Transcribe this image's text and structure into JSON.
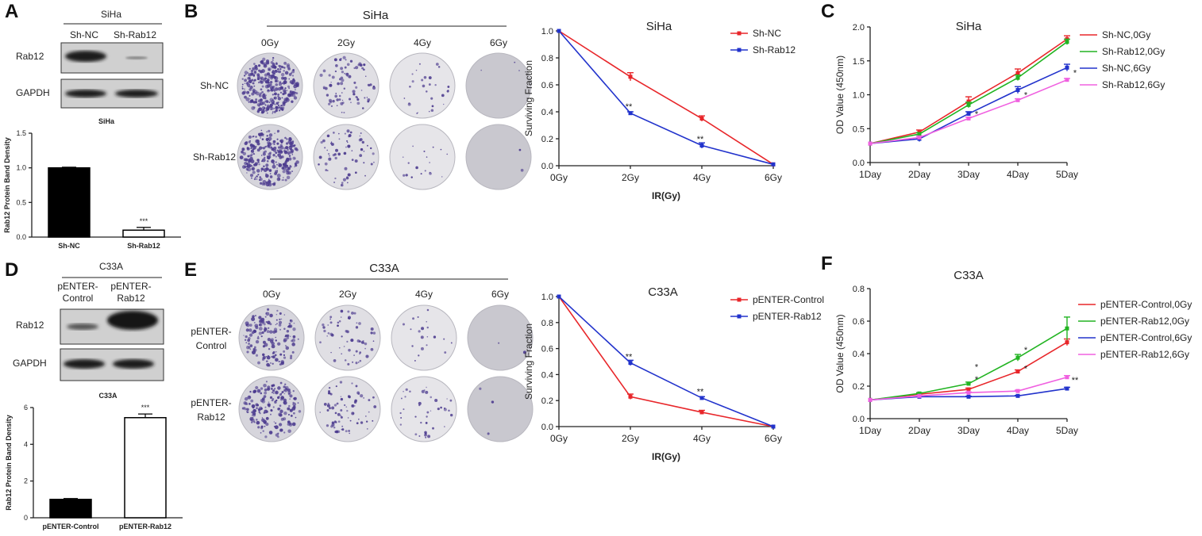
{
  "panels": {
    "A": {
      "letter": "A",
      "cell": "SiHa",
      "lanes": [
        "Sh-NC",
        "Sh-Rab12"
      ],
      "rows": [
        "Rab12",
        "GAPDH"
      ]
    },
    "B": {
      "letter": "B",
      "cell": "SiHa",
      "doses": [
        "0Gy",
        "2Gy",
        "4Gy",
        "6Gy"
      ],
      "rows": [
        "Sh-NC",
        "Sh-Rab12"
      ]
    },
    "C": {
      "letter": "C"
    },
    "D": {
      "letter": "D",
      "cell": "C33A",
      "lanes": [
        "pENTER-\nControl",
        "pENTER-\nRab12"
      ],
      "rows": [
        "Rab12",
        "GAPDH"
      ]
    },
    "E": {
      "letter": "E",
      "cell": "C33A",
      "doses": [
        "0Gy",
        "2Gy",
        "4Gy",
        "6Gy"
      ],
      "rows": [
        "pENTER-\nControl",
        "pENTER-\nRab12"
      ]
    },
    "F": {
      "letter": "F"
    }
  },
  "colors": {
    "red": "#e8262a",
    "blue": "#2233cc",
    "green": "#22b422",
    "pink": "#f060e0",
    "black": "#000000"
  },
  "chart_data": [
    {
      "id": "A-bar",
      "type": "bar",
      "title": "SiHa",
      "ylabel": "Rab12 Protein Band Density",
      "categories": [
        "Sh-NC",
        "Sh-Rab12"
      ],
      "values": [
        1.0,
        0.1
      ],
      "errors": [
        0.01,
        0.04
      ],
      "fills": [
        "#000000",
        "#ffffff"
      ],
      "ylim": [
        0,
        1.5
      ],
      "yticks": [
        0.0,
        0.5,
        1.0,
        1.5
      ],
      "yticklabels": [
        "0.0",
        "0.5",
        "1.0",
        "1.5"
      ],
      "annotations": [
        {
          "index": 1,
          "text": "***"
        }
      ]
    },
    {
      "id": "D-bar",
      "type": "bar",
      "title": "C33A",
      "ylabel": "Rab12 Protein Band Density",
      "categories": [
        "pENTER-Control",
        "pENTER-Rab12"
      ],
      "values": [
        1.0,
        5.45
      ],
      "errors": [
        0.05,
        0.2
      ],
      "fills": [
        "#000000",
        "#ffffff"
      ],
      "ylim": [
        0,
        6
      ],
      "yticks": [
        0,
        2,
        4,
        6
      ],
      "yticklabels": [
        "0",
        "2",
        "4",
        "6"
      ],
      "annotations": [
        {
          "index": 1,
          "text": "***"
        }
      ]
    },
    {
      "id": "B-line",
      "type": "line",
      "title": "SiHa",
      "xlabel": "IR(Gy)",
      "ylabel": "Surviving Fraction",
      "categories": [
        "0Gy",
        "2Gy",
        "4Gy",
        "6Gy"
      ],
      "ylim": [
        0,
        1.0
      ],
      "yticks": [
        0,
        0.2,
        0.4,
        0.6,
        0.8,
        1.0
      ],
      "yticklabels": [
        "0.0",
        "0.2",
        "0.4",
        "0.6",
        "0.8",
        "1.0"
      ],
      "series": [
        {
          "name": "Sh-NC",
          "color": "#e8262a",
          "values": [
            1.0,
            0.66,
            0.35,
            0.01
          ],
          "errors": [
            0,
            0.03,
            0.02,
            0
          ]
        },
        {
          "name": "Sh-Rab12",
          "color": "#2233cc",
          "values": [
            1.0,
            0.39,
            0.15,
            0.01
          ],
          "errors": [
            0,
            0.01,
            0.02,
            0
          ]
        }
      ],
      "annotations": [
        {
          "index": 1,
          "text": "**"
        },
        {
          "index": 2,
          "text": "**"
        }
      ]
    },
    {
      "id": "E-line",
      "type": "line",
      "title": "C33A",
      "xlabel": "IR(Gy)",
      "ylabel": "Surviving Fraction",
      "categories": [
        "0Gy",
        "2Gy",
        "4Gy",
        "6Gy"
      ],
      "ylim": [
        0,
        1.0
      ],
      "yticks": [
        0,
        0.2,
        0.4,
        0.6,
        0.8,
        1.0
      ],
      "yticklabels": [
        "0.0",
        "0.2",
        "0.4",
        "0.6",
        "0.8",
        "1.0"
      ],
      "series": [
        {
          "name": "pENTER-Control",
          "color": "#e8262a",
          "values": [
            1.0,
            0.23,
            0.11,
            0.0
          ],
          "errors": [
            0,
            0.02,
            0.015,
            0
          ]
        },
        {
          "name": "pENTER-Rab12",
          "color": "#2233cc",
          "values": [
            1.0,
            0.49,
            0.22,
            0.0
          ],
          "errors": [
            0,
            0.02,
            0.01,
            0
          ]
        }
      ],
      "annotations": [
        {
          "index": 1,
          "text": "**"
        },
        {
          "index": 2,
          "text": "**"
        }
      ]
    },
    {
      "id": "C-line",
      "type": "line",
      "title": "SiHa",
      "ylabel": "OD Value (450nm)",
      "categories": [
        "1Day",
        "2Day",
        "3Day",
        "4Day",
        "5Day"
      ],
      "ylim": [
        0,
        2.0
      ],
      "yticks": [
        0,
        0.5,
        1.0,
        1.5,
        2.0
      ],
      "yticklabels": [
        "0.0",
        "0.5",
        "1.0",
        "1.5",
        "2.0"
      ],
      "series": [
        {
          "name": "Sh-NC,0Gy",
          "color": "#e8262a",
          "values": [
            0.28,
            0.45,
            0.9,
            1.32,
            1.82
          ],
          "errors": [
            0,
            0.03,
            0.07,
            0.06,
            0.05
          ]
        },
        {
          "name": "Sh-Rab12,0Gy",
          "color": "#22b422",
          "values": [
            0.28,
            0.42,
            0.85,
            1.25,
            1.78
          ],
          "errors": [
            0,
            0.02,
            0.04,
            0.04,
            0.04
          ]
        },
        {
          "name": "Sh-NC,6Gy",
          "color": "#2233cc",
          "values": [
            0.28,
            0.35,
            0.72,
            1.07,
            1.4
          ],
          "errors": [
            0,
            0.04,
            0.03,
            0.05,
            0.05
          ]
        },
        {
          "name": "Sh-Rab12,6Gy",
          "color": "#f060e0",
          "values": [
            0.28,
            0.37,
            0.65,
            0.92,
            1.22
          ],
          "errors": [
            0,
            0.02,
            0.02,
            0.02,
            0.02
          ]
        }
      ],
      "annotations": [
        {
          "index": 2,
          "y": 0.72,
          "text": "*"
        },
        {
          "index": 3,
          "y": 1.0,
          "text": "*"
        },
        {
          "index": 4,
          "y": 1.33,
          "text": "*"
        }
      ]
    },
    {
      "id": "F-line",
      "type": "line",
      "title": "C33A",
      "ylabel": "OD Value (450nm)",
      "categories": [
        "1Day",
        "2Day",
        "3Day",
        "4Day",
        "5Day"
      ],
      "ylim": [
        0,
        0.8
      ],
      "yticks": [
        0,
        0.2,
        0.4,
        0.6,
        0.8
      ],
      "yticklabels": [
        "0.0",
        "0.2",
        "0.4",
        "0.6",
        "0.8"
      ],
      "series": [
        {
          "name": "pENTER-Control,0Gy",
          "color": "#e8262a",
          "values": [
            0.115,
            0.15,
            0.18,
            0.29,
            0.47
          ],
          "errors": [
            0,
            0.005,
            0.008,
            0.01,
            0.02
          ]
        },
        {
          "name": "pENTER-Rab12,0Gy",
          "color": "#22b422",
          "values": [
            0.115,
            0.155,
            0.215,
            0.375,
            0.555
          ],
          "errors": [
            0,
            0.005,
            0.01,
            0.02,
            0.07
          ]
        },
        {
          "name": "pENTER-Control,6Gy",
          "color": "#2233cc",
          "values": [
            0.115,
            0.135,
            0.135,
            0.14,
            0.185
          ],
          "errors": [
            0,
            0.003,
            0.003,
            0.003,
            0.008
          ]
        },
        {
          "name": "pENTER-Rab12,6Gy",
          "color": "#f060e0",
          "values": [
            0.115,
            0.14,
            0.16,
            0.17,
            0.255
          ],
          "errors": [
            0,
            0.003,
            0.004,
            0.005,
            0.01
          ]
        }
      ],
      "annotations": [
        {
          "index": 2,
          "y": 0.245,
          "text": "*"
        },
        {
          "index": 2,
          "y": 0.32,
          "text": "*"
        },
        {
          "index": 3,
          "y": 0.31,
          "text": "*"
        },
        {
          "index": 3,
          "y": 0.425,
          "text": "*"
        },
        {
          "index": 4,
          "y": 0.24,
          "text": "**"
        }
      ]
    }
  ]
}
